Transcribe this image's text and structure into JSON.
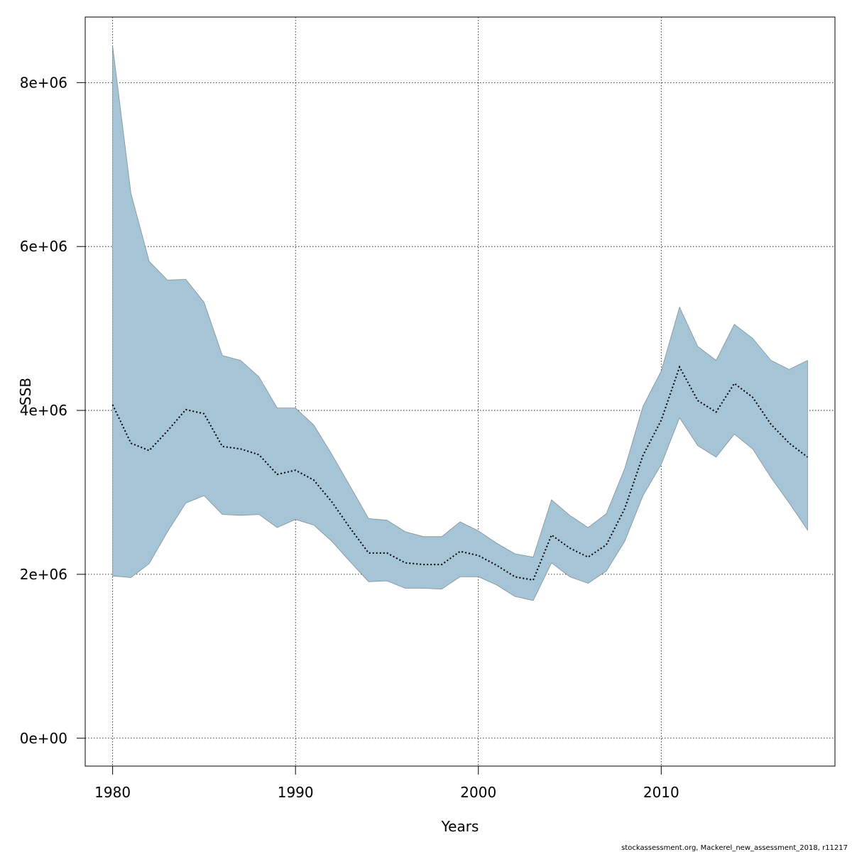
{
  "chart_data": {
    "type": "line",
    "xlabel": "Years",
    "ylabel": "SSB",
    "xlim": [
      1978.5,
      2019.5
    ],
    "ylim": [
      -340000,
      8800000
    ],
    "x_ticks": [
      1980,
      1990,
      2000,
      2010
    ],
    "y_ticks": [
      0,
      2000000,
      4000000,
      6000000,
      8000000
    ],
    "y_tick_labels": [
      "0e+00",
      "2e+06",
      "4e+06",
      "6e+06",
      "8e+06"
    ],
    "grid": true,
    "band_color": "#a5c4d6",
    "line_color": "#000000",
    "line_style": "dotted",
    "series": [
      {
        "role": "estimate",
        "x": [
          1980,
          1981,
          1982,
          1983,
          1984,
          1985,
          1986,
          1987,
          1988,
          1989,
          1990,
          1991,
          1992,
          1993,
          1994,
          1995,
          1996,
          1997,
          1998,
          1999,
          2000,
          2001,
          2002,
          2003,
          2004,
          2005,
          2006,
          2007,
          2008,
          2009,
          2010,
          2011,
          2012,
          2013,
          2014,
          2015,
          2016,
          2017,
          2018
        ],
        "values": [
          4070000,
          3600000,
          3510000,
          3750000,
          4010000,
          3960000,
          3560000,
          3530000,
          3460000,
          3220000,
          3270000,
          3150000,
          2880000,
          2560000,
          2260000,
          2260000,
          2140000,
          2120000,
          2120000,
          2280000,
          2230000,
          2110000,
          1970000,
          1930000,
          2480000,
          2320000,
          2210000,
          2360000,
          2800000,
          3450000,
          3880000,
          4530000,
          4120000,
          3980000,
          4330000,
          4160000,
          3830000,
          3600000,
          3430000
        ]
      },
      {
        "role": "upper",
        "values": [
          8450000,
          6650000,
          5820000,
          5590000,
          5600000,
          5320000,
          4670000,
          4610000,
          4410000,
          4030000,
          4030000,
          3820000,
          3460000,
          3070000,
          2680000,
          2660000,
          2520000,
          2460000,
          2460000,
          2640000,
          2530000,
          2380000,
          2250000,
          2210000,
          2910000,
          2720000,
          2570000,
          2740000,
          3290000,
          4050000,
          4480000,
          5260000,
          4780000,
          4610000,
          5050000,
          4880000,
          4610000,
          4500000,
          4610000
        ]
      },
      {
        "role": "lower",
        "values": [
          1980000,
          1960000,
          2130000,
          2520000,
          2870000,
          2960000,
          2730000,
          2720000,
          2730000,
          2570000,
          2670000,
          2600000,
          2400000,
          2150000,
          1910000,
          1920000,
          1830000,
          1830000,
          1820000,
          1970000,
          1970000,
          1870000,
          1730000,
          1680000,
          2140000,
          1970000,
          1890000,
          2040000,
          2400000,
          2960000,
          3340000,
          3910000,
          3570000,
          3430000,
          3710000,
          3530000,
          3180000,
          2870000,
          2540000
        ]
      }
    ]
  },
  "footer": "stockassessment.org, Mackerel_new_assessment_2018, r11217"
}
